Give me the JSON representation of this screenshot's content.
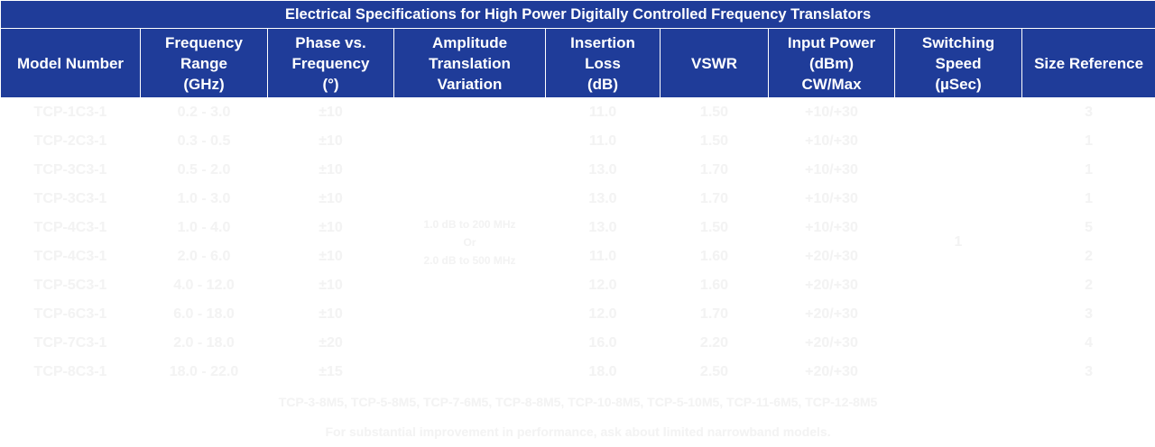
{
  "table": {
    "title": "Electrical Specifications for High Power Digitally Controlled Frequency Translators",
    "headers": {
      "model": "Model Number",
      "freq_l1": "Frequency",
      "freq_l2": "Range",
      "freq_l3": "(GHz)",
      "phase_l1": "Phase vs.",
      "phase_l2": "Frequency",
      "phase_l3": "(°)",
      "amp_l1": "Amplitude",
      "amp_l2": "Translation",
      "amp_l3": "Variation",
      "loss_l1": "Insertion",
      "loss_l2": "Loss",
      "loss_l3": "(dB)",
      "vswr": "VSWR",
      "power_l1": "Input Power",
      "power_l2": "(dBm)",
      "power_l3": "CW/Max",
      "switch_l1": "Switching",
      "switch_l2": "Speed",
      "switch_l3": "(µSec)",
      "size": "Size Reference"
    },
    "rows": [
      {
        "model": "TCP-1C3-1",
        "freq": "0.2 - 3.0",
        "phase": "±10",
        "loss": "11.0",
        "vswr": "1.50",
        "power": "+10/+30",
        "size": "3"
      },
      {
        "model": "TCP-2C3-1",
        "freq": "0.3 - 0.5",
        "phase": "±10",
        "loss": "11.0",
        "vswr": "1.50",
        "power": "+10/+30",
        "size": "1"
      },
      {
        "model": "TCP-3C3-1",
        "freq": "0.5 - 2.0",
        "phase": "±10",
        "loss": "13.0",
        "vswr": "1.70",
        "power": "+10/+30",
        "size": "1"
      },
      {
        "model": "TCP-3C3-1",
        "freq": "1.0 - 3.0",
        "phase": "±10",
        "loss": "13.0",
        "vswr": "1.70",
        "power": "+10/+30",
        "size": "1"
      },
      {
        "model": "TCP-4C3-1",
        "freq": "1.0 - 4.0",
        "phase": "±10",
        "loss": "13.0",
        "vswr": "1.50",
        "power": "+10/+30",
        "size": "5"
      },
      {
        "model": "TCP-4C3-1",
        "freq": "2.0 - 6.0",
        "phase": "±10",
        "loss": "11.0",
        "vswr": "1.60",
        "power": "+20/+30",
        "size": "2"
      },
      {
        "model": "TCP-5C3-1",
        "freq": "4.0 - 12.0",
        "phase": "±10",
        "loss": "12.0",
        "vswr": "1.60",
        "power": "+20/+30",
        "size": "2"
      },
      {
        "model": "TCP-6C3-1",
        "freq": "6.0 - 18.0",
        "phase": "±10",
        "loss": "12.0",
        "vswr": "1.70",
        "power": "+20/+30",
        "size": "3"
      },
      {
        "model": "TCP-7C3-1",
        "freq": "2.0 - 18.0",
        "phase": "±20",
        "loss": "16.0",
        "vswr": "2.20",
        "power": "+20/+30",
        "size": "4"
      },
      {
        "model": "TCP-8C3-1",
        "freq": "18.0 - 22.0",
        "phase": "±15",
        "loss": "18.0",
        "vswr": "2.50",
        "power": "+20/+30",
        "size": "3"
      }
    ],
    "amplitude_note_l1": "1.0 dB to 200 MHz",
    "amplitude_note_l2": "Or",
    "amplitude_note_l3": "2.0 dB to 500 MHz",
    "switching_speed": "1",
    "footnote_1": "TCP-3-8M5, TCP-5-8M5, TCP-7-6M5, TCP-8-8M5, TCP-10-8M5, TCP-5-10M5, TCP-11-6M5, TCP-12-8M5",
    "footnote_2": "For substantial improvement in performance, ask about limited narrowband models."
  }
}
